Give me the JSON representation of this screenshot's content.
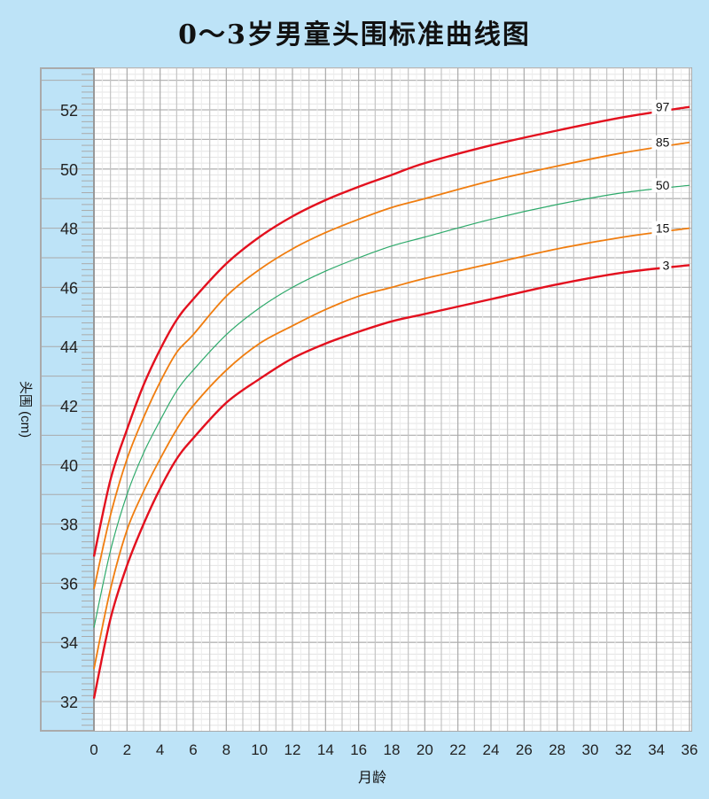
{
  "chart_data": {
    "type": "line",
    "title": "0～3岁男童头围标准曲线图",
    "xlabel": "月龄",
    "ylabel": "头围 (cm)",
    "xlim": [
      0,
      36
    ],
    "ylim": [
      31,
      53.5
    ],
    "x_ticks": [
      0,
      2,
      4,
      6,
      8,
      10,
      12,
      14,
      16,
      18,
      20,
      22,
      24,
      26,
      28,
      30,
      32,
      34,
      36
    ],
    "y_ticks": [
      32,
      34,
      36,
      38,
      40,
      42,
      44,
      46,
      48,
      50,
      52
    ],
    "grid": true,
    "x": [
      0,
      1,
      2,
      3,
      4,
      5,
      6,
      8,
      10,
      12,
      14,
      16,
      18,
      20,
      24,
      28,
      32,
      36
    ],
    "series": [
      {
        "name": "97",
        "color": "#e3101e",
        "values": [
          36.9,
          39.5,
          41.2,
          42.7,
          43.9,
          44.9,
          45.6,
          46.8,
          47.7,
          48.4,
          48.95,
          49.4,
          49.8,
          50.2,
          50.8,
          51.3,
          51.75,
          52.1
        ]
      },
      {
        "name": "85",
        "color": "#f07d0f",
        "values": [
          35.8,
          38.3,
          40.2,
          41.6,
          42.8,
          43.8,
          44.4,
          45.7,
          46.6,
          47.3,
          47.85,
          48.3,
          48.7,
          49.0,
          49.6,
          50.1,
          50.55,
          50.9
        ]
      },
      {
        "name": "50",
        "color": "#2eaa6b",
        "values": [
          34.5,
          37.1,
          39.0,
          40.4,
          41.5,
          42.5,
          43.2,
          44.4,
          45.3,
          46.0,
          46.55,
          47.0,
          47.4,
          47.7,
          48.3,
          48.8,
          49.2,
          49.45
        ]
      },
      {
        "name": "15",
        "color": "#f07d0f",
        "values": [
          33.1,
          35.8,
          37.8,
          39.1,
          40.2,
          41.2,
          42.0,
          43.2,
          44.1,
          44.7,
          45.25,
          45.7,
          46.0,
          46.3,
          46.8,
          47.3,
          47.7,
          48.0
        ]
      },
      {
        "name": "3",
        "color": "#e3101e",
        "values": [
          32.1,
          34.8,
          36.6,
          38.0,
          39.2,
          40.2,
          40.9,
          42.1,
          42.9,
          43.6,
          44.1,
          44.5,
          44.85,
          45.1,
          45.6,
          46.1,
          46.5,
          46.75
        ]
      }
    ]
  }
}
